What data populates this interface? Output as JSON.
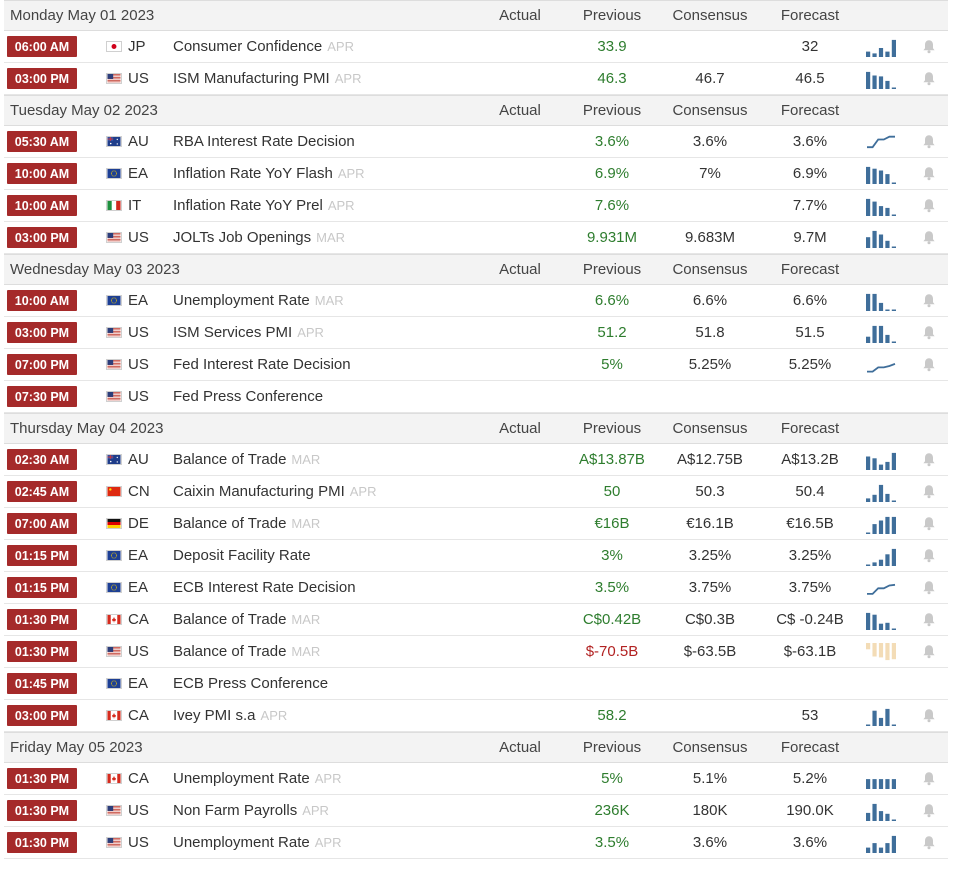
{
  "columns": {
    "actual": "Actual",
    "previous": "Previous",
    "consensus": "Consensus",
    "forecast": "Forecast"
  },
  "days": [
    {
      "date": "Monday May 01 2023",
      "events": [
        {
          "time": "06:00 AM",
          "country": "JP",
          "flag": "jp",
          "event": "Consumer Confidence",
          "ref": "APR",
          "previous": "33.9",
          "consensus": "",
          "forecast": "32",
          "prev_trend": "pos",
          "spark_type": "bars",
          "spark": [
            0.3,
            0.2,
            0.5,
            0.3,
            0.95
          ]
        },
        {
          "time": "03:00 PM",
          "country": "US",
          "flag": "us",
          "event": "ISM Manufacturing PMI",
          "ref": "APR",
          "previous": "46.3",
          "consensus": "46.7",
          "forecast": "46.5",
          "prev_trend": "pos",
          "spark_type": "bars",
          "spark": [
            0.95,
            0.75,
            0.7,
            0.45,
            0.08
          ]
        }
      ]
    },
    {
      "date": "Tuesday May 02 2023",
      "events": [
        {
          "time": "05:30 AM",
          "country": "AU",
          "flag": "au",
          "event": "RBA Interest Rate Decision",
          "ref": "",
          "previous": "3.6%",
          "consensus": "3.6%",
          "forecast": "3.6%",
          "prev_trend": "pos",
          "spark_type": "line",
          "spark": [
            0.2,
            0.2,
            0.75,
            0.75,
            0.95,
            0.95
          ]
        },
        {
          "time": "10:00 AM",
          "country": "EA",
          "flag": "eu",
          "event": "Inflation Rate YoY Flash",
          "ref": "APR",
          "previous": "6.9%",
          "consensus": "7%",
          "forecast": "6.9%",
          "prev_trend": "pos",
          "spark_type": "bars",
          "spark": [
            0.95,
            0.85,
            0.75,
            0.55,
            0.08
          ]
        },
        {
          "time": "10:00 AM",
          "country": "IT",
          "flag": "it",
          "event": "Inflation Rate YoY Prel",
          "ref": "APR",
          "previous": "7.6%",
          "consensus": "",
          "forecast": "7.7%",
          "prev_trend": "pos",
          "spark_type": "bars",
          "spark": [
            0.95,
            0.8,
            0.55,
            0.45,
            0.08
          ]
        },
        {
          "time": "03:00 PM",
          "country": "US",
          "flag": "us",
          "event": "JOLTs Job Openings",
          "ref": "MAR",
          "previous": "9.931M",
          "consensus": "9.683M",
          "forecast": "9.7M",
          "prev_trend": "pos",
          "spark_type": "bars",
          "spark": [
            0.6,
            0.95,
            0.75,
            0.4,
            0.08
          ]
        }
      ]
    },
    {
      "date": "Wednesday May 03 2023",
      "events": [
        {
          "time": "10:00 AM",
          "country": "EA",
          "flag": "eu",
          "event": "Unemployment Rate",
          "ref": "MAR",
          "previous": "6.6%",
          "consensus": "6.6%",
          "forecast": "6.6%",
          "prev_trend": "pos",
          "spark_type": "bars",
          "spark": [
            0.95,
            0.95,
            0.45,
            0.08,
            0.08
          ]
        },
        {
          "time": "03:00 PM",
          "country": "US",
          "flag": "us",
          "event": "ISM Services PMI",
          "ref": "APR",
          "previous": "51.2",
          "consensus": "51.8",
          "forecast": "51.5",
          "prev_trend": "pos",
          "spark_type": "bars",
          "spark": [
            0.35,
            0.95,
            0.95,
            0.45,
            0.08
          ]
        },
        {
          "time": "07:00 PM",
          "country": "US",
          "flag": "us",
          "event": "Fed Interest Rate Decision",
          "ref": "",
          "previous": "5%",
          "consensus": "5.25%",
          "forecast": "5.25%",
          "prev_trend": "pos",
          "spark_type": "line",
          "spark": [
            0.1,
            0.1,
            0.4,
            0.4,
            0.5,
            0.65
          ]
        },
        {
          "time": "07:30 PM",
          "country": "US",
          "flag": "us",
          "event": "Fed Press Conference",
          "ref": "",
          "previous": "",
          "consensus": "",
          "forecast": "",
          "prev_trend": "pos",
          "spark_type": "none",
          "spark": []
        }
      ]
    },
    {
      "date": "Thursday May 04 2023",
      "events": [
        {
          "time": "02:30 AM",
          "country": "AU",
          "flag": "au",
          "event": "Balance of Trade",
          "ref": "MAR",
          "previous": "A$13.87B",
          "consensus": "A$12.75B",
          "forecast": "A$13.2B",
          "prev_trend": "pos",
          "spark_type": "bars",
          "spark": [
            0.75,
            0.65,
            0.3,
            0.45,
            0.95
          ]
        },
        {
          "time": "02:45 AM",
          "country": "CN",
          "flag": "cn",
          "event": "Caixin Manufacturing PMI",
          "ref": "APR",
          "previous": "50",
          "consensus": "50.3",
          "forecast": "50.4",
          "prev_trend": "pos",
          "spark_type": "bars",
          "spark": [
            0.2,
            0.4,
            0.95,
            0.45,
            0.08
          ]
        },
        {
          "time": "07:00 AM",
          "country": "DE",
          "flag": "de",
          "event": "Balance of Trade",
          "ref": "MAR",
          "previous": "€16B",
          "consensus": "€16.1B",
          "forecast": "€16.5B",
          "prev_trend": "pos",
          "spark_type": "bars",
          "spark": [
            0.08,
            0.55,
            0.75,
            0.95,
            0.95
          ]
        },
        {
          "time": "01:15 PM",
          "country": "EA",
          "flag": "eu",
          "event": "Deposit Facility Rate",
          "ref": "",
          "previous": "3%",
          "consensus": "3.25%",
          "forecast": "3.25%",
          "prev_trend": "pos",
          "spark_type": "bars",
          "spark": [
            0.08,
            0.2,
            0.35,
            0.65,
            0.95
          ]
        },
        {
          "time": "01:15 PM",
          "country": "EA",
          "flag": "eu",
          "event": "ECB Interest Rate Decision",
          "ref": "",
          "previous": "3.5%",
          "consensus": "3.75%",
          "forecast": "3.75%",
          "prev_trend": "pos",
          "spark_type": "line",
          "spark": [
            0.15,
            0.15,
            0.55,
            0.55,
            0.75,
            0.8
          ]
        },
        {
          "time": "01:30 PM",
          "country": "CA",
          "flag": "ca",
          "event": "Balance of Trade",
          "ref": "MAR",
          "previous": "C$0.42B",
          "consensus": "C$0.3B",
          "forecast": "C$ -0.24B",
          "prev_trend": "pos",
          "spark_type": "bars",
          "spark": [
            0.95,
            0.85,
            0.35,
            0.4,
            0.08
          ]
        },
        {
          "time": "01:30 PM",
          "country": "US",
          "flag": "us",
          "event": "Balance of Trade",
          "ref": "MAR",
          "previous": "$-70.5B",
          "consensus": "$-63.5B",
          "forecast": "$-63.1B",
          "prev_trend": "neg",
          "spark_type": "neg-bars",
          "spark": [
            0.35,
            0.75,
            0.8,
            0.95,
            0.9
          ]
        },
        {
          "time": "01:45 PM",
          "country": "EA",
          "flag": "eu",
          "event": "ECB Press Conference",
          "ref": "",
          "previous": "",
          "consensus": "",
          "forecast": "",
          "prev_trend": "pos",
          "spark_type": "none",
          "spark": []
        },
        {
          "time": "03:00 PM",
          "country": "CA",
          "flag": "ca",
          "event": "Ivey PMI s.a",
          "ref": "APR",
          "previous": "58.2",
          "consensus": "",
          "forecast": "53",
          "prev_trend": "pos",
          "spark_type": "bars",
          "spark": [
            0.08,
            0.85,
            0.45,
            0.95,
            0.08
          ]
        }
      ]
    },
    {
      "date": "Friday May 05 2023",
      "events": [
        {
          "time": "01:30 PM",
          "country": "CA",
          "flag": "ca",
          "event": "Unemployment Rate",
          "ref": "APR",
          "previous": "5%",
          "consensus": "5.1%",
          "forecast": "5.2%",
          "prev_trend": "pos",
          "spark_type": "bars",
          "spark": [
            0.55,
            0.55,
            0.55,
            0.55,
            0.55
          ]
        },
        {
          "time": "01:30 PM",
          "country": "US",
          "flag": "us",
          "event": "Non Farm Payrolls",
          "ref": "APR",
          "previous": "236K",
          "consensus": "180K",
          "forecast": "190.0K",
          "prev_trend": "pos",
          "spark_type": "bars",
          "spark": [
            0.45,
            0.95,
            0.55,
            0.4,
            0.08
          ]
        },
        {
          "time": "01:30 PM",
          "country": "US",
          "flag": "us",
          "event": "Unemployment Rate",
          "ref": "APR",
          "previous": "3.5%",
          "consensus": "3.6%",
          "forecast": "3.6%",
          "prev_trend": "pos",
          "spark_type": "bars",
          "spark": [
            0.3,
            0.55,
            0.3,
            0.55,
            0.95
          ]
        }
      ]
    }
  ],
  "colors": {
    "time_badge": "#a52a2a",
    "header_bg": "#f3f3f3",
    "spark_bar": "#3f6e9a",
    "spark_neg": "#f3dcb6",
    "previous_pos": "#2e7d2e",
    "previous_neg": "#b22222",
    "bell": "#c9c9c9"
  },
  "icons": {
    "bell": "bell-icon",
    "spark": "sparkline-chart-icon"
  }
}
